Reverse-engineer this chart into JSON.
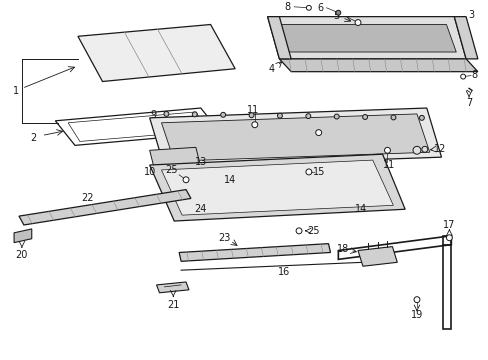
{
  "background_color": "#ffffff",
  "line_color": "#1a1a1a",
  "gray_fill": "#c8c8c8",
  "light_fill": "#e8e8e8",
  "dark_fill": "#a0a0a0"
}
